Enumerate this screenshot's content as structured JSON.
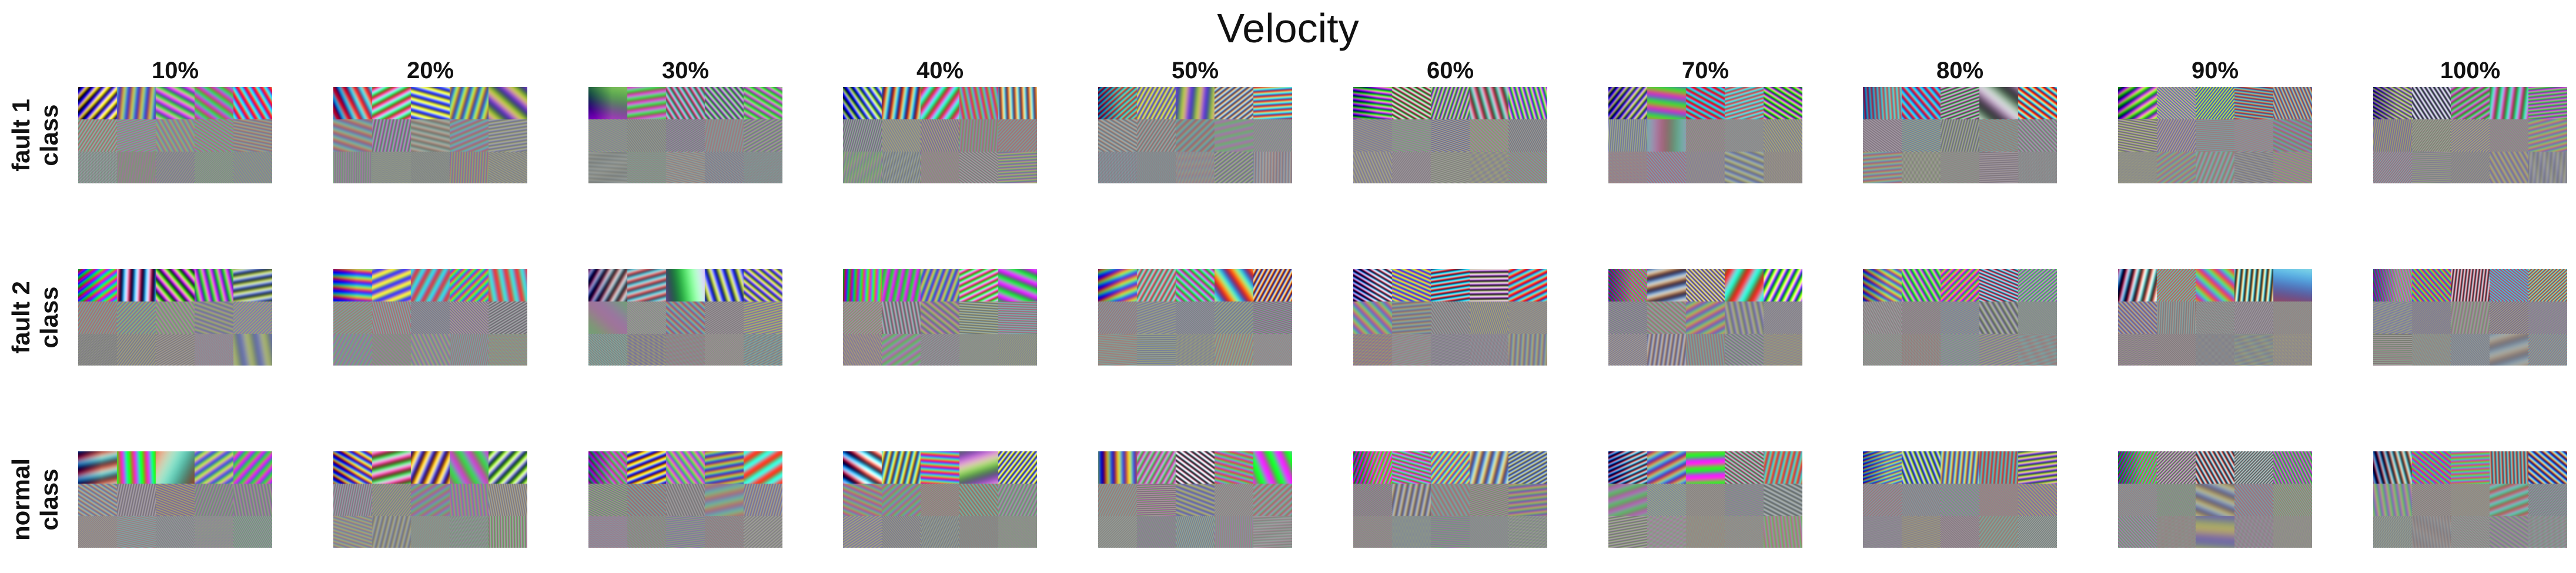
{
  "figure": {
    "title": "Velocity",
    "columns": [
      "10%",
      "20%",
      "30%",
      "40%",
      "50%",
      "60%",
      "70%",
      "80%",
      "90%",
      "100%"
    ],
    "rows": [
      {
        "line1": "fault 1",
        "line2": "class"
      },
      {
        "line1": "fault 2",
        "line2": "class"
      },
      {
        "line1": "normal",
        "line2": "class"
      }
    ]
  }
}
